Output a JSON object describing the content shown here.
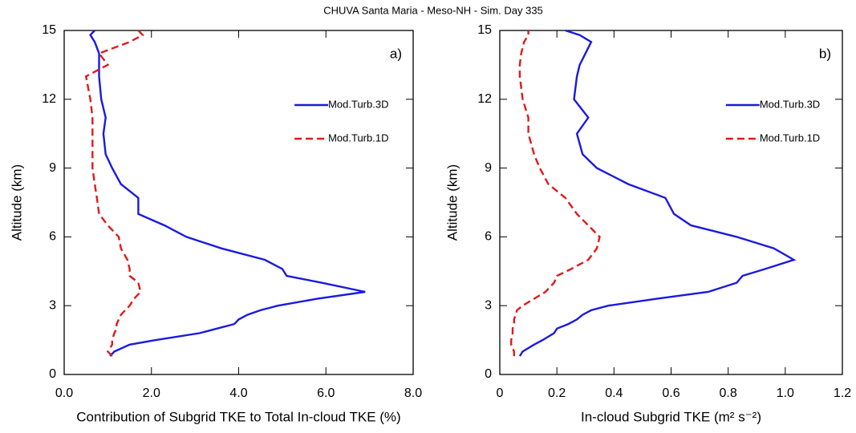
{
  "title": "CHUVA Santa Maria - Meso-NH - Sim. Day 335",
  "chart_data": [
    {
      "type": "line",
      "annotation": "a)",
      "xlabel": "Contribution of Subgrid TKE to Total In-cloud TKE (%)",
      "ylabel": "Altitude (km)",
      "y": [
        0.8,
        1.0,
        1.3,
        1.5,
        1.8,
        2.0,
        2.2,
        2.4,
        2.6,
        2.8,
        3.0,
        3.3,
        3.6,
        4.0,
        4.3,
        4.6,
        5.0,
        5.5,
        6.0,
        6.5,
        7.0,
        7.7,
        8.3,
        9.0,
        9.6,
        10.5,
        11.2,
        12.0,
        13.0,
        13.5,
        14.0,
        14.5,
        14.8,
        15.0
      ],
      "series": [
        {
          "name": "Mod.Turb.3D",
          "color": "#1a1ae0",
          "linestyle": "solid",
          "values": [
            1.05,
            1.15,
            1.5,
            2.1,
            3.1,
            3.5,
            3.9,
            4.0,
            4.2,
            4.5,
            4.9,
            5.8,
            6.9,
            5.9,
            5.1,
            5.0,
            4.6,
            3.6,
            2.8,
            2.3,
            1.7,
            1.7,
            1.3,
            1.1,
            0.95,
            0.9,
            0.95,
            0.85,
            0.8,
            0.8,
            0.8,
            0.7,
            0.6,
            0.7
          ]
        },
        {
          "name": "Mod.Turb.1D",
          "color": "#e01a1a",
          "linestyle": "dashed",
          "values": [
            1.1,
            1.0,
            1.1,
            1.1,
            1.15,
            1.2,
            1.2,
            1.25,
            1.3,
            1.4,
            1.5,
            1.6,
            1.75,
            1.7,
            1.5,
            1.5,
            1.45,
            1.3,
            1.25,
            1.0,
            0.8,
            0.75,
            0.7,
            0.65,
            0.65,
            0.65,
            0.65,
            0.6,
            0.5,
            1.0,
            0.8,
            1.5,
            1.8,
            1.7
          ]
        }
      ],
      "xlim": [
        0,
        8
      ],
      "xticks": [
        {
          "value": 0,
          "label": "0.0"
        },
        {
          "value": 2,
          "label": "2.0"
        },
        {
          "value": 4,
          "label": "4.0"
        },
        {
          "value": 6,
          "label": "6.0"
        },
        {
          "value": 8,
          "label": "8.0"
        }
      ],
      "ylim": [
        0,
        15
      ],
      "yticks": [
        0,
        3,
        6,
        9,
        12,
        15
      ],
      "legend": "right"
    },
    {
      "type": "line",
      "annotation": "b)",
      "xlabel": "In-cloud Subgrid TKE (m² s⁻²)",
      "ylabel": "Altitude (km)",
      "y": [
        0.8,
        1.0,
        1.3,
        1.5,
        1.8,
        2.0,
        2.2,
        2.4,
        2.6,
        2.8,
        3.0,
        3.3,
        3.6,
        4.0,
        4.3,
        4.6,
        5.0,
        5.5,
        6.0,
        6.5,
        7.0,
        7.7,
        8.3,
        9.0,
        9.6,
        10.5,
        11.2,
        12.0,
        13.0,
        13.5,
        14.0,
        14.5,
        14.8,
        15.0
      ],
      "series": [
        {
          "name": "Mod.Turb.3D",
          "color": "#1a1ae0",
          "linestyle": "solid",
          "values": [
            0.07,
            0.08,
            0.12,
            0.15,
            0.19,
            0.2,
            0.24,
            0.27,
            0.29,
            0.32,
            0.38,
            0.55,
            0.73,
            0.83,
            0.85,
            0.93,
            1.03,
            0.96,
            0.83,
            0.67,
            0.61,
            0.58,
            0.45,
            0.34,
            0.29,
            0.27,
            0.31,
            0.26,
            0.27,
            0.28,
            0.3,
            0.32,
            0.28,
            0.23
          ]
        },
        {
          "name": "Mod.Turb.1D",
          "color": "#e01a1a",
          "linestyle": "dashed",
          "values": [
            0.05,
            0.05,
            0.04,
            0.04,
            0.045,
            0.045,
            0.05,
            0.05,
            0.055,
            0.06,
            0.08,
            0.12,
            0.16,
            0.19,
            0.2,
            0.25,
            0.31,
            0.34,
            0.35,
            0.31,
            0.27,
            0.23,
            0.17,
            0.14,
            0.12,
            0.1,
            0.1,
            0.08,
            0.07,
            0.07,
            0.075,
            0.085,
            0.1,
            0.1
          ]
        }
      ],
      "xlim": [
        0,
        1.2
      ],
      "xticks": [
        0,
        0.2,
        0.4,
        0.6,
        0.8,
        {
          "value": 1,
          "label": "1.0"
        },
        1.2
      ],
      "ylim": [
        0,
        15
      ],
      "yticks": [
        0,
        3,
        6,
        9,
        12,
        15
      ],
      "legend": "right"
    }
  ]
}
